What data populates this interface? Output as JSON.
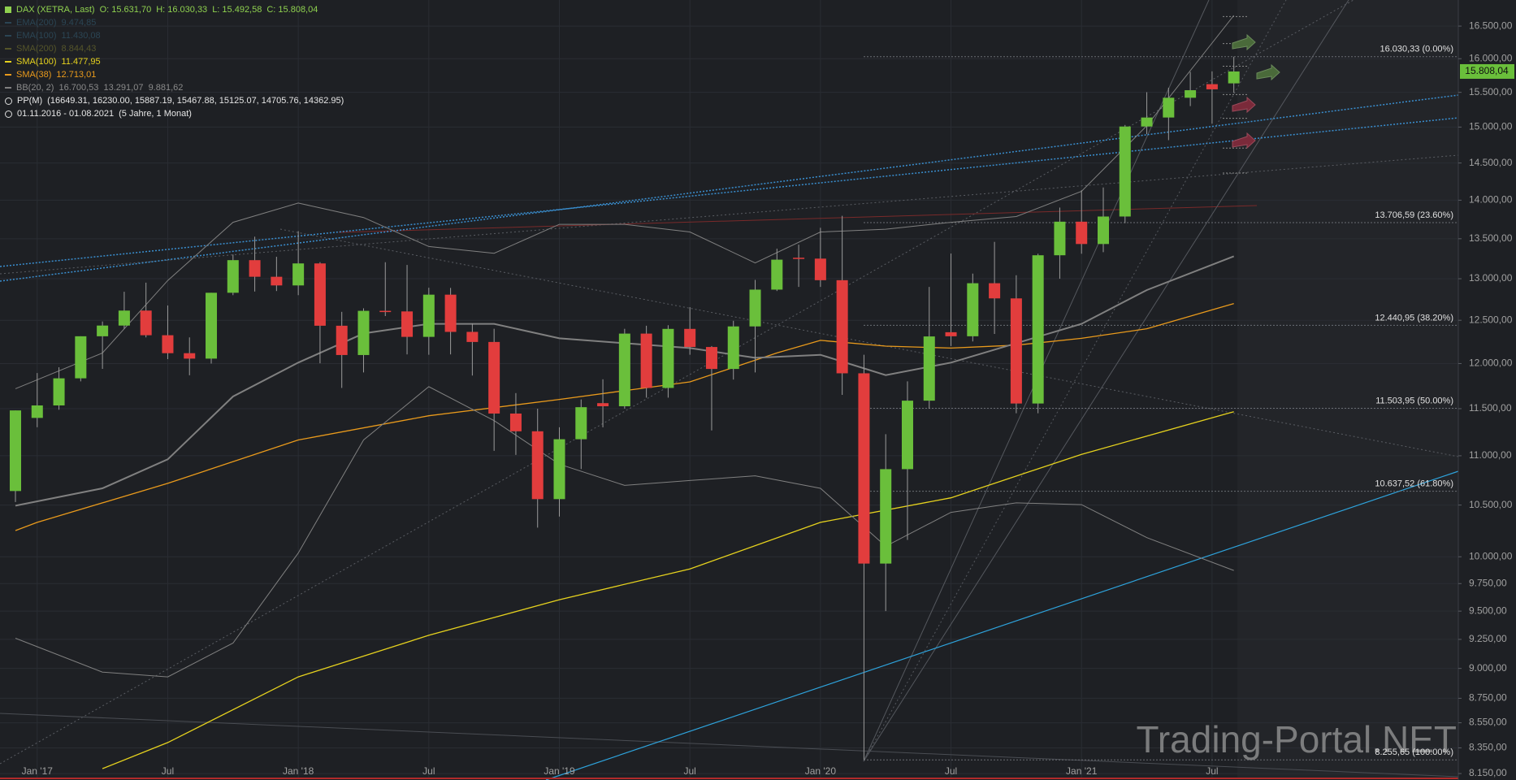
{
  "chart_data": {
    "type": "candlestick",
    "title": "DAX (XETRA, Last)",
    "header": [
      "O: 15.631,70",
      "H: 16.030,33",
      "L: 15.492,58",
      "C: 15.808,04"
    ],
    "period": "01.11.2016 - 01.08.2021",
    "period_note": "(5 Jahre, 1 Monat)",
    "watermark": "Trading-Portal.NET",
    "up_color": "#6abf3b",
    "down_color": "#e23d3d",
    "log_scale": true,
    "grid": true,
    "categories": [
      null,
      "Jan '17",
      null,
      null,
      null,
      null,
      null,
      "Jul",
      null,
      null,
      null,
      null,
      null,
      "Jan '18",
      null,
      null,
      null,
      null,
      null,
      "Jul",
      null,
      null,
      null,
      null,
      null,
      "Jan '19",
      null,
      null,
      null,
      null,
      null,
      "Jul",
      null,
      null,
      null,
      null,
      null,
      "Jan '20",
      null,
      null,
      null,
      null,
      null,
      "Jul",
      null,
      null,
      null,
      null,
      null,
      "Jan '21",
      null,
      null,
      null,
      null,
      null,
      "Jul",
      null
    ],
    "open": [
      10640,
      11400,
      11535,
      11834,
      12313,
      12438,
      12615,
      12325,
      12118,
      12056,
      12829,
      13230,
      13024,
      12918,
      13189,
      12436,
      12097,
      12612,
      12605,
      12306,
      12806,
      12364,
      12247,
      11447,
      11257,
      10559,
      11173,
      11560,
      11526,
      12344,
      11727,
      12399,
      12189,
      11939,
      12428,
      12867,
      13260,
      13249,
      12982,
      11890,
      9936,
      10862,
      11587,
      12360,
      12313,
      12945,
      12761,
      11556,
      13291,
      13719,
      13433,
      13786,
      15008,
      15136,
      15421,
      15620,
      15631.7
    ],
    "high": [
      11481,
      11893,
      11958,
      12313,
      12486,
      12841,
      12952,
      12676,
      12300,
      12829,
      13300,
      13526,
      13272,
      13597,
      13205,
      12600,
      12642,
      13204,
      13170,
      12890,
      12888,
      12460,
      12400,
      11670,
      11500,
      11300,
      11600,
      11823,
      12400,
      12436,
      12442,
      12656,
      12200,
      12494,
      12986,
      13374,
      13425,
      13640,
      13795,
      12100,
      11226,
      11800,
      12900,
      13313,
      13063,
      13460,
      13043,
      13310,
      13903,
      14131,
      14169,
      15030,
      15502,
      15568,
      15802,
      15810,
      16030.33
    ],
    "low": [
      10530,
      11300,
      11488,
      11800,
      11940,
      12400,
      12300,
      12050,
      11868,
      12000,
      12800,
      12844,
      12850,
      12800,
      12003,
      11727,
      11900,
      12550,
      12104,
      12100,
      12104,
      11865,
      11051,
      11009,
      10279,
      10387,
      10863,
      11299,
      11500,
      11620,
      11620,
      12100,
      11266,
      11820,
      11900,
      12850,
      12900,
      12900,
      11650,
      8256,
      9500,
      10160,
      11500,
      12200,
      12253,
      12340,
      11450,
      11450,
      13000,
      13310,
      13330,
      13700,
      14900,
      14816,
      15300,
      15048,
      15492.58
    ],
    "close": [
      11481,
      11535,
      11834,
      12313,
      12438,
      12615,
      12325,
      12118,
      12056,
      12829,
      13230,
      13024,
      12918,
      13189,
      12436,
      12097,
      12612,
      12605,
      12306,
      12806,
      12364,
      12247,
      11447,
      11257,
      10559,
      11173,
      11516,
      11526,
      12344,
      11727,
      12399,
      12189,
      11939,
      12428,
      12867,
      13236,
      13249,
      12982,
      11890,
      9936,
      10862,
      11587,
      12311,
      12313,
      12945,
      12761,
      11556,
      13291,
      13719,
      13433,
      13786,
      15008,
      15136,
      15421,
      15531,
      15544,
      15808.04
    ],
    "indicators": [
      {
        "name": "EMA(200)",
        "label": "9.474,85",
        "color": "#2b4554",
        "visible": false
      },
      {
        "name": "EMA(100)",
        "label": "11.430,08",
        "color": "#2b4554",
        "visible": false
      },
      {
        "name": "SMA(200)",
        "label": "8.844,43",
        "color": "#55552a",
        "visible": false
      },
      {
        "name": "SMA(100)",
        "label": "11.477,95",
        "color": "#e6d21e",
        "visible": true,
        "x": [
          4,
          7,
          13,
          19,
          25,
          31,
          37,
          43,
          49,
          56
        ],
        "values": [
          8188,
          8392,
          8928,
          9286,
          9603,
          9886,
          10330,
          10572,
          11015,
          11467
        ]
      },
      {
        "name": "SMA(38)",
        "label": "12.713,01",
        "color": "#e99a1c",
        "visible": true,
        "x": [
          0,
          1,
          7,
          13,
          19,
          25,
          31,
          35,
          37,
          40,
          43,
          46,
          49,
          52,
          56
        ],
        "values": [
          10250,
          10330,
          10717,
          11165,
          11423,
          11601,
          11794,
          12121,
          12266,
          12199,
          12177,
          12210,
          12289,
          12401,
          12699
        ]
      },
      {
        "name": "BB(20, 2)",
        "label": "16.700,53  13.291,07  9.881,62",
        "color": "#808080",
        "visible": true,
        "x": [
          0,
          4,
          7,
          10,
          13,
          16,
          19,
          22,
          25,
          28,
          31,
          34,
          37,
          40,
          43,
          46,
          49,
          52,
          56
        ],
        "series": [
          {
            "values": [
              11719,
              12121,
              12979,
              13711,
              13962,
              13773,
              13401,
              13316,
              13685,
              13685,
              13586,
              13195,
              13586,
              13622,
              13711,
              13786,
              14117,
              15020,
              16667
            ]
          },
          {
            "values": [
              10494,
              10667,
              10963,
              11633,
              12011,
              12346,
              12458,
              12458,
              12289,
              12233,
              12177,
              12065,
              12099,
              11870,
              12011,
              12233,
              12458,
              12862,
              13279
            ]
          },
          {
            "values": [
              9260,
              8969,
              8928,
              9218,
              10035,
              11165,
              11741,
              11371,
              10913,
              10697,
              10746,
              10794,
              10667,
              10100,
              10428,
              10522,
              10504,
              10182,
              9872
            ]
          }
        ]
      }
    ],
    "pivot": {
      "name": "PP(M)",
      "label": "(16649.31, 16230.00, 15887.19, 15467.88, 15125.07, 14705.76, 14362.95)",
      "values": [
        16649.31,
        16230.0,
        15887.19,
        15467.88,
        15125.07,
        14705.76,
        14362.95
      ],
      "color": "#8a8a8a"
    },
    "fib_levels": [
      {
        "value": 16030.33,
        "label": "16.030,33 (0.00%)"
      },
      {
        "value": 13706.59,
        "label": "13.706,59 (23.60%)"
      },
      {
        "value": 12440.95,
        "label": "12.440,95 (38.20%)"
      },
      {
        "value": 11503.95,
        "label": "11.503,95 (50.00%)"
      },
      {
        "value": 10637.52,
        "label": "10.637,52 (61.80%)"
      },
      {
        "value": 8255.65,
        "label": "8.255,65 (100.00%)"
      }
    ],
    "last_price": {
      "value": 15808.04,
      "label": "15.808,04",
      "color": "#6abf3b"
    },
    "ylim": [
      8113,
      16911
    ],
    "yticks": [
      {
        "value": 16500,
        "label": "16.500,00"
      },
      {
        "value": 16000,
        "label": "16.000,00"
      },
      {
        "value": 15500,
        "label": "15.500,00"
      },
      {
        "value": 15000,
        "label": "15.000,00"
      },
      {
        "value": 14500,
        "label": "14.500,00"
      },
      {
        "value": 14000,
        "label": "14.000,00"
      },
      {
        "value": 13500,
        "label": "13.500,00"
      },
      {
        "value": 13000,
        "label": "13.000,00"
      },
      {
        "value": 12500,
        "label": "12.500,00"
      },
      {
        "value": 12000,
        "label": "12.000,00"
      },
      {
        "value": 11500,
        "label": "11.500,00"
      },
      {
        "value": 11000,
        "label": "11.000,00"
      },
      {
        "value": 10500,
        "label": "10.500,00"
      },
      {
        "value": 10000,
        "label": "10.000,00"
      },
      {
        "value": 9750,
        "label": "9.750,00"
      },
      {
        "value": 9500,
        "label": "9.500,00"
      },
      {
        "value": 9250,
        "label": "9.250,00"
      },
      {
        "value": 9000,
        "label": "9.000,00"
      },
      {
        "value": 8750,
        "label": "8.750,00"
      },
      {
        "value": 8550,
        "label": "8.550,00"
      },
      {
        "value": 8350,
        "label": "8.350,00"
      },
      {
        "value": 8150,
        "label": "8.150,00"
      }
    ]
  }
}
